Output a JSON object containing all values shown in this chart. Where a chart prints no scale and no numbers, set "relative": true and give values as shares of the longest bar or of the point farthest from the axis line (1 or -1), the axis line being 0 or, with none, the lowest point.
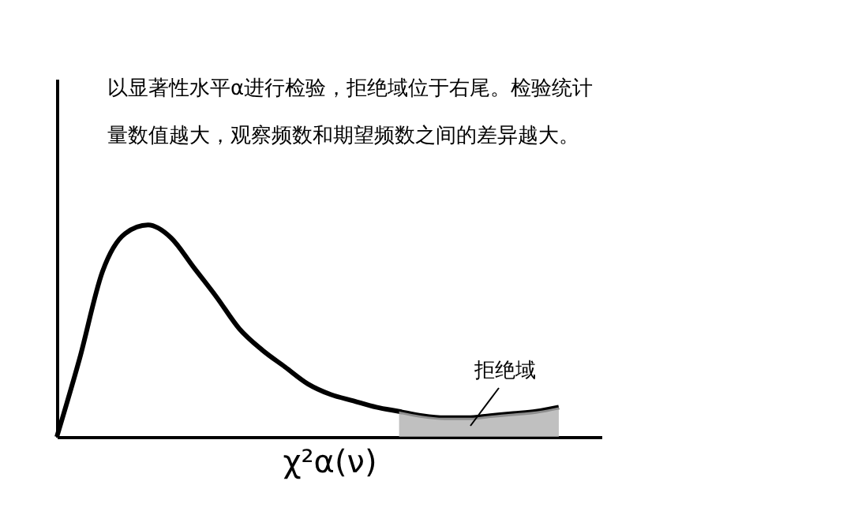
{
  "chart_data": {
    "type": "line",
    "relative": true,
    "title": "以显著性水平α进行检验，拒绝域位于右尾。检验统计量数值越大，观察频数和期望频数之间的差异越大。",
    "xlabel": "χ²α(ν)",
    "categories": [
      null,
      null,
      null,
      null,
      null,
      null,
      null,
      null,
      null,
      null,
      null,
      null,
      null,
      null,
      null,
      null,
      null,
      null,
      null,
      null,
      null,
      null,
      null
    ],
    "series": [
      {
        "color": "#000000",
        "values": [
          0,
          0.37,
          0.78,
          0.96,
          1,
          0.94,
          0.8,
          0.66,
          0.51,
          0.41,
          0.33,
          0.25,
          0.2,
          0.17,
          0.14,
          0.12,
          0.1,
          0.09,
          0.09,
          0.1,
          0.11,
          0.12,
          0.14
        ]
      },
      {
        "type": "area",
        "color": "#b0b0b0",
        "values": [
          null,
          null,
          null,
          null,
          null,
          null,
          null,
          null,
          null,
          null,
          null,
          null,
          null,
          null,
          null,
          0.12,
          0.1,
          0.09,
          0.09,
          0.1,
          0.11,
          0.12,
          0.14
        ]
      }
    ],
    "annotations": [
      "拒绝域"
    ]
  }
}
